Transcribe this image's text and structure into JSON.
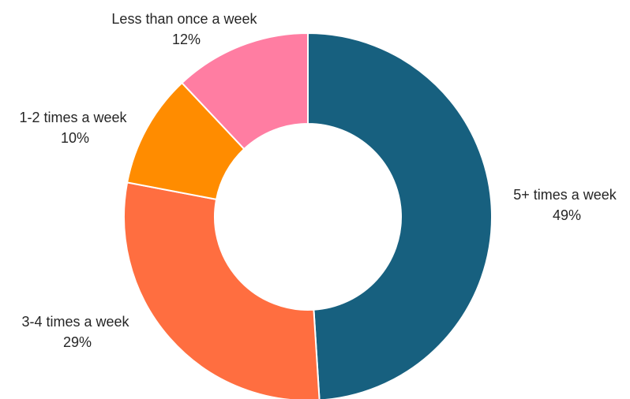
{
  "chart_data": {
    "type": "pie",
    "variant": "donut",
    "title": "",
    "legend": "none",
    "slices": [
      {
        "name": "5+ times a week",
        "value": 49,
        "value_label": "49%",
        "color": "#17607f"
      },
      {
        "name": "3-4 times a week",
        "value": 29,
        "value_label": "29%",
        "color": "#ff6e40"
      },
      {
        "name": "1-2 times a week",
        "value": 10,
        "value_label": "10%",
        "color": "#ff8c00"
      },
      {
        "name": "Less than once a week",
        "value": 12,
        "value_label": "12%",
        "color": "#ff7da2"
      }
    ]
  }
}
